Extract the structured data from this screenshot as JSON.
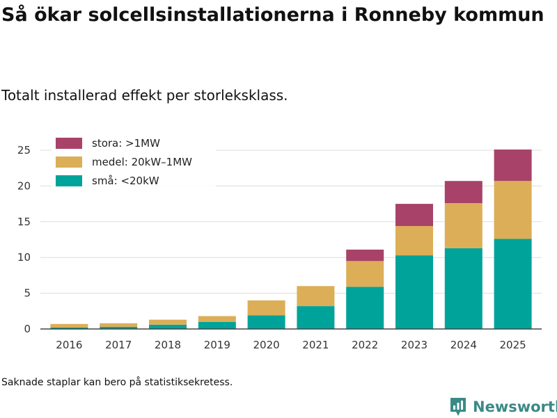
{
  "title": "Så ökar solcellsinstallationerna i Ronneby kommun",
  "subtitle": "Totalt installerad effekt per storleksklass.",
  "note": "Saknade staplar kan bero på statistiksekretess.",
  "brand": {
    "name": "Newsworthy",
    "color": "#3a8a86"
  },
  "chart_data": {
    "type": "bar",
    "stacked": true,
    "title": "Så ökar solcellsinstallationerna i Ronneby kommun",
    "subtitle": "Totalt installerad effekt per storleksklass.",
    "xlabel": "",
    "ylabel": "",
    "ylim": [
      0,
      26
    ],
    "yticks": [
      0,
      5,
      10,
      15,
      20,
      25
    ],
    "grid": true,
    "legend_position": "top-left",
    "categories": [
      "2016",
      "2017",
      "2018",
      "2019",
      "2020",
      "2021",
      "2022",
      "2023",
      "2024",
      "2025"
    ],
    "series": [
      {
        "name": "små: <20kW",
        "color": "#00a39a",
        "values": [
          0.2,
          0.3,
          0.6,
          1.0,
          1.9,
          3.2,
          5.9,
          10.3,
          11.3,
          12.6
        ]
      },
      {
        "name": "medel: 20kW–1MW",
        "color": "#dcae57",
        "values": [
          0.5,
          0.5,
          0.7,
          0.8,
          2.1,
          2.8,
          3.6,
          4.1,
          6.3,
          8.1
        ]
      },
      {
        "name": "stora: >1MW",
        "color": "#a84269",
        "values": [
          0,
          0,
          0,
          0,
          0,
          0,
          1.6,
          3.1,
          3.1,
          4.4
        ]
      }
    ],
    "legend_order": [
      "stora: >1MW",
      "medel: 20kW–1MW",
      "små: <20kW"
    ]
  }
}
